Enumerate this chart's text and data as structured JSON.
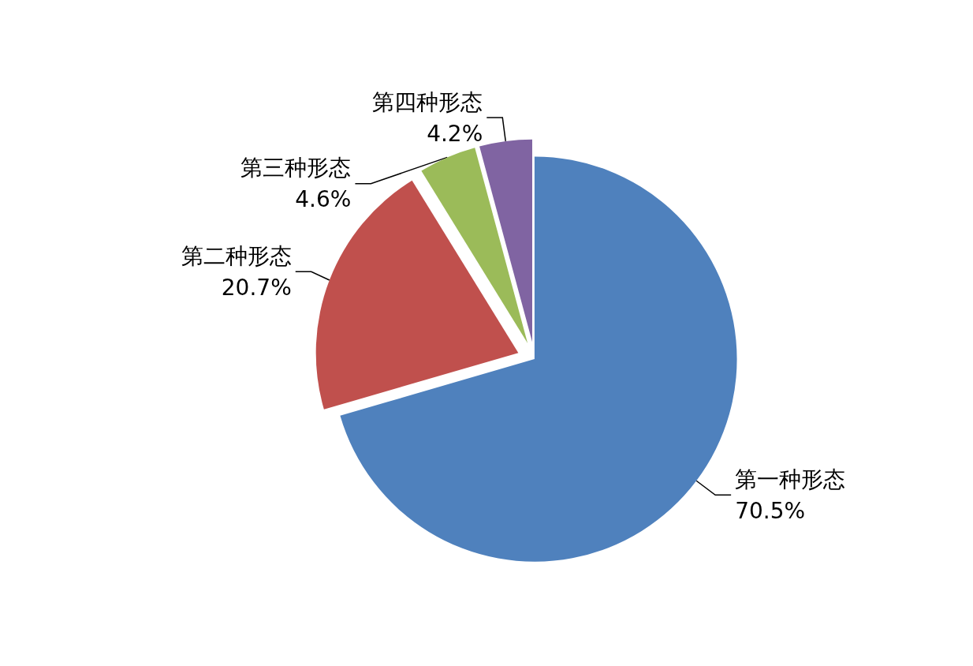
{
  "chart_data": {
    "type": "pie",
    "categories": [
      "第一种形态",
      "第二种形态",
      "第三种形态",
      "第四种形态"
    ],
    "values": [
      70.5,
      20.7,
      4.6,
      4.2
    ],
    "colors": [
      "#4f81bd",
      "#c0504d",
      "#9bbb59",
      "#8064a2"
    ],
    "value_labels": [
      "70.5%",
      "20.7%",
      "4.6%",
      "4.2%"
    ]
  }
}
